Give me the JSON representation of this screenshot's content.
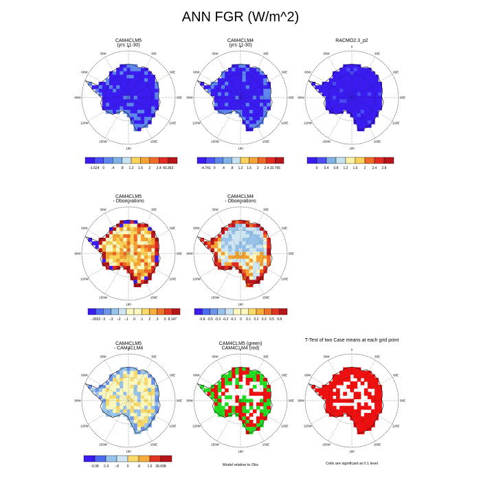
{
  "title": "ANN FGR (W/m^2)",
  "colors": {
    "scale": [
      "#3b1cf0",
      "#4d4ef5",
      "#5e86ec",
      "#7fb3e6",
      "#c8e3f0",
      "#faf3a6",
      "#f9d25a",
      "#f5a434",
      "#ef6a27",
      "#e22b23",
      "#b8151b"
    ],
    "diff": [
      "#3b1cf0",
      "#4d6af2",
      "#6c95ea",
      "#97c2ea",
      "#cfe6f2",
      "#fbf7c0",
      "#f9d96a",
      "#f6ad3c",
      "#ef7328",
      "#e03523",
      "#b8151b"
    ],
    "green": "#22dd22",
    "red": "#ee1111"
  },
  "chart_data": [
    {
      "type": "heatmap",
      "id": "p1",
      "title": [
        "CAM4CLM5",
        "(yrs 11-30)"
      ],
      "colorbar": [
        "-1.624",
        "0",
        ".4",
        ".8",
        "1.2",
        "1.6",
        "2",
        "2.4",
        "43.363"
      ],
      "note": ""
    },
    {
      "type": "heatmap",
      "id": "p2",
      "title": [
        "CAM4CLM4",
        "(yrs 11-30)"
      ],
      "colorbar": [
        "-4.741",
        "0",
        ".4",
        ".8",
        "1.2",
        "1.6",
        "2",
        "2.4",
        "10.765"
      ],
      "note": ""
    },
    {
      "type": "heatmap",
      "id": "p3",
      "title": [
        "RACMO2.3_p2"
      ],
      "colorbar": [
        "0",
        "0.4",
        "0.8",
        "1.2",
        "1.6",
        "2",
        "2.4",
        "2.8"
      ],
      "note": ""
    },
    {
      "type": "heatmap",
      "id": "p4",
      "title": [
        "CAM4CLM5",
        "- Observations"
      ],
      "colorbar": [
        "-.9932",
        "-.5",
        "-.3",
        "-.2",
        "-.1",
        ".0",
        ".1",
        ".2",
        ".3",
        ".5",
        "8.147"
      ],
      "note": ""
    },
    {
      "type": "heatmap",
      "id": "p5",
      "title": [
        "CAM4CLM4",
        "- Observations"
      ],
      "colorbar": [
        "-0.8",
        "-0.5",
        "-0.3",
        "-0.2",
        "-0.1",
        "0",
        "0.1",
        "0.2",
        "0.3",
        "0.5",
        "0.8"
      ],
      "note": ""
    },
    {
      "type": "heatmap",
      "id": "p6",
      "title": [
        "CAM4CLM5",
        "- CAM4CLM4"
      ],
      "colorbar": [
        "-9.38",
        "-1.6",
        "-.8",
        "0",
        ".8",
        "1.6",
        "36.698"
      ],
      "note": ""
    },
    {
      "type": "heatmap",
      "id": "p7",
      "title": [
        "CAM4CLM5 (green)",
        "CAM4CLM4 (red)"
      ],
      "colorbar": [],
      "note": "Model relative to Obs"
    },
    {
      "type": "heatmap",
      "id": "p8",
      "title": [
        "T-Test of two Case means at each grid point"
      ],
      "colorbar": [],
      "note": "Cells are significant at 0.1 level"
    }
  ],
  "longitude_labels": [
    "0",
    "30E",
    "60E",
    "90E",
    "120E",
    "150E",
    "180",
    "150W",
    "120W",
    "90W",
    "60W",
    "30W"
  ]
}
